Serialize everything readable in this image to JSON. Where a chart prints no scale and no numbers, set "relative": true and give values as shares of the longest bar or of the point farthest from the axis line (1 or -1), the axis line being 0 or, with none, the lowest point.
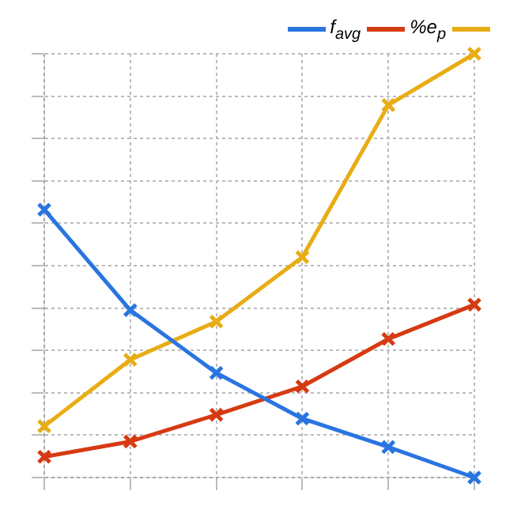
{
  "chart_data": {
    "type": "line",
    "relative": true,
    "categories": [
      null,
      null,
      null,
      null,
      null,
      null
    ],
    "series": [
      {
        "name": "f$_{avg}$",
        "color": "#2a74e0",
        "values": [
          0.632,
          0.395,
          0.247,
          0.139,
          0.072,
          0
        ]
      },
      {
        "name": "%e$_{p}$",
        "color": "#d63a12",
        "values": [
          0.049,
          0.085,
          0.148,
          0.215,
          0.327,
          0.408
        ]
      },
      {
        "color": "#e8ad14",
        "values": [
          0.121,
          0.278,
          0.368,
          0.52,
          0.879,
          1
        ]
      }
    ],
    "grid": true,
    "marker": "cross",
    "legend": "top right",
    "line_style": "solid"
  }
}
